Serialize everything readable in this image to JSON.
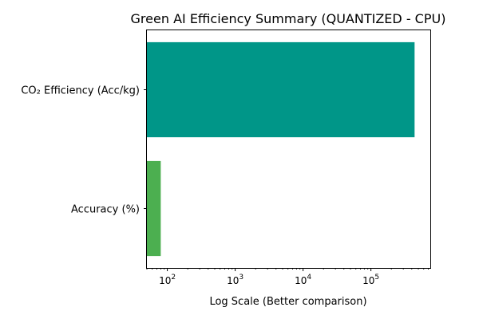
{
  "chart_data": {
    "type": "bar",
    "orientation": "horizontal",
    "title": "Green AI Efficiency Summary (QUANTIZED - CPU)",
    "xlabel": "Log Scale (Better comparison)",
    "ylabel": "",
    "xscale": "log",
    "xlim": [
      50,
      750000
    ],
    "categories": [
      "CO₂ Efficiency (Acc/kg)",
      "Accuracy (%)"
    ],
    "values": [
      440000,
      80
    ],
    "colors": [
      "#009688",
      "#4caf50"
    ],
    "xticks": [
      {
        "base": "10",
        "exp": "2",
        "value": 100
      },
      {
        "base": "10",
        "exp": "3",
        "value": 1000
      },
      {
        "base": "10",
        "exp": "4",
        "value": 10000
      },
      {
        "base": "10",
        "exp": "5",
        "value": 100000
      }
    ],
    "grid": false,
    "legend": "none"
  }
}
